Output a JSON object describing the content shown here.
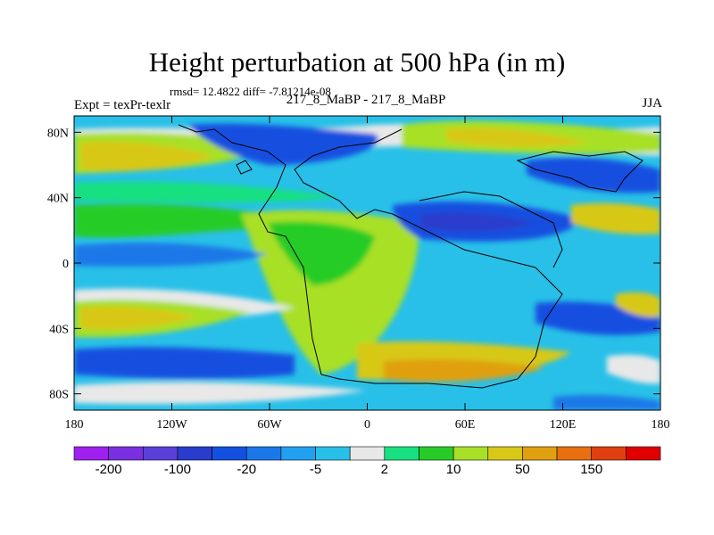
{
  "chart_data": {
    "type": "heatmap",
    "title": "Height perturbation at 500 hPa (in m)",
    "stats_line": "rmsd= 12.4822  diff= -7.81214e-08",
    "left_string": "Expt = texPr-texlr",
    "center_string": "217_8_MaBP - 217_8_MaBP",
    "right_string": "JJA",
    "x_ticks": [
      {
        "value": -180,
        "label": "180"
      },
      {
        "value": -120,
        "label": "120W"
      },
      {
        "value": -60,
        "label": "60W"
      },
      {
        "value": 0,
        "label": "0"
      },
      {
        "value": 60,
        "label": "60E"
      },
      {
        "value": 120,
        "label": "120E"
      },
      {
        "value": 180,
        "label": "180"
      }
    ],
    "y_ticks": [
      {
        "value": 80,
        "label": "80N"
      },
      {
        "value": 40,
        "label": "40N"
      },
      {
        "value": 0,
        "label": "0"
      },
      {
        "value": -40,
        "label": "40S"
      },
      {
        "value": -80,
        "label": "80S"
      }
    ],
    "xlim": [
      -180,
      180
    ],
    "ylim": [
      -90,
      90
    ],
    "colorbar": {
      "colors": [
        "#a020f0",
        "#7a30e0",
        "#5a40d8",
        "#2a3ccc",
        "#1450e0",
        "#1a78e8",
        "#22a0f0",
        "#28c0e8",
        "#e8e8e8",
        "#18e080",
        "#28cc28",
        "#a8e028",
        "#d8c818",
        "#e0a010",
        "#e87010",
        "#e04010",
        "#e00000"
      ],
      "labels": [
        {
          "boundary_index": 1,
          "label": "-200"
        },
        {
          "boundary_index": 3,
          "label": "-100"
        },
        {
          "boundary_index": 5,
          "label": "-20"
        },
        {
          "boundary_index": 7,
          "label": "-5"
        },
        {
          "boundary_index": 9,
          "label": "2"
        },
        {
          "boundary_index": 11,
          "label": "10"
        },
        {
          "boundary_index": 13,
          "label": "50"
        },
        {
          "boundary_index": 15,
          "label": "150"
        }
      ]
    }
  }
}
